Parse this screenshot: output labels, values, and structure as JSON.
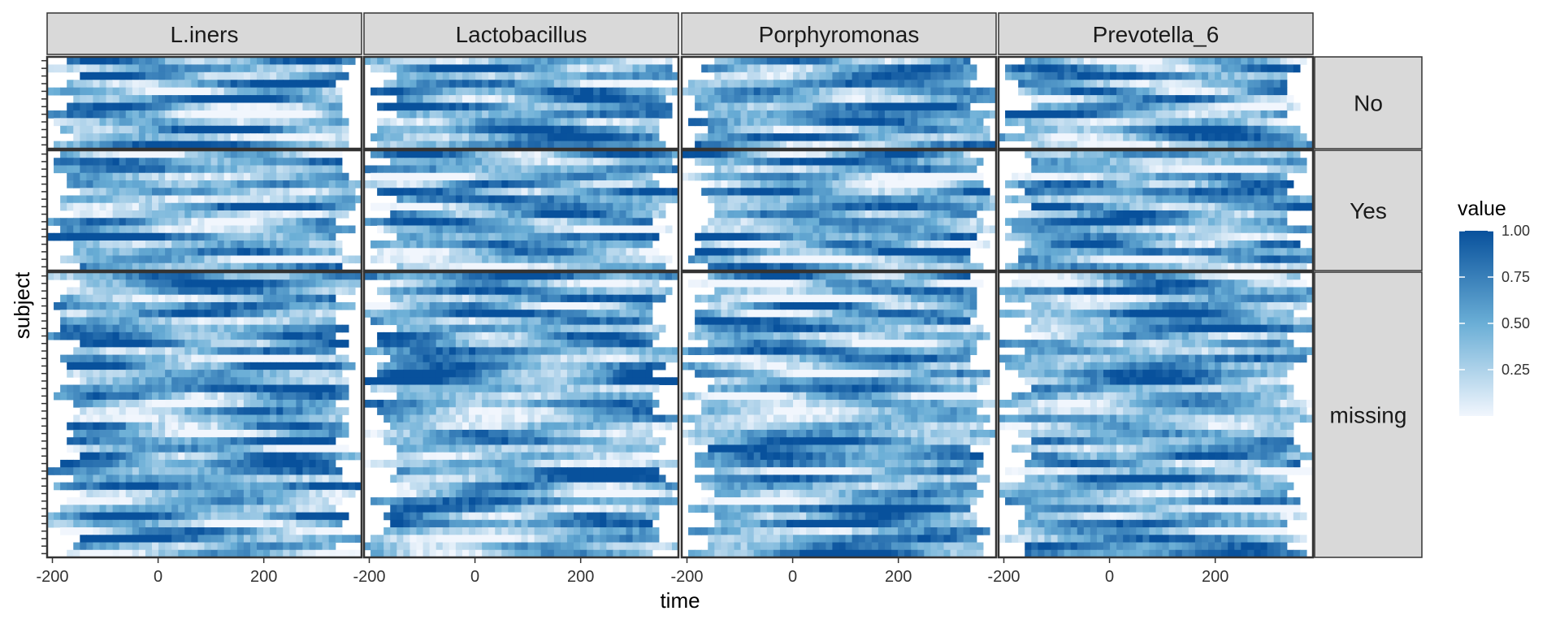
{
  "chart_data": {
    "type": "heatmap",
    "title": "",
    "xlabel": "time",
    "ylabel": "subject",
    "x_range": [
      -210,
      385
    ],
    "x_ticks": [
      "-200",
      "0",
      "200"
    ],
    "column_facets": [
      "L.iners",
      "Lactobacillus",
      "Porphyromonas",
      "Prevotella_6"
    ],
    "row_facets": [
      {
        "label": "No",
        "subjects": 12
      },
      {
        "label": "Yes",
        "subjects": 16
      },
      {
        "label": "missing",
        "subjects": 38
      }
    ],
    "time_bins": 48,
    "legend": {
      "title": "value",
      "ticks": [
        "1.00",
        "0.75",
        "0.50",
        "0.25"
      ],
      "tick_values": [
        1.0,
        0.75,
        0.5,
        0.25
      ],
      "range": [
        0,
        1
      ],
      "placement": "right"
    },
    "color_scale": {
      "low": "#f1f6fd",
      "mid": "#6aaed6",
      "high": "#08519c"
    },
    "colors": {
      "panel_border": "#333333",
      "strip_fill": "#d9d9d9",
      "background": "#ffffff"
    }
  }
}
